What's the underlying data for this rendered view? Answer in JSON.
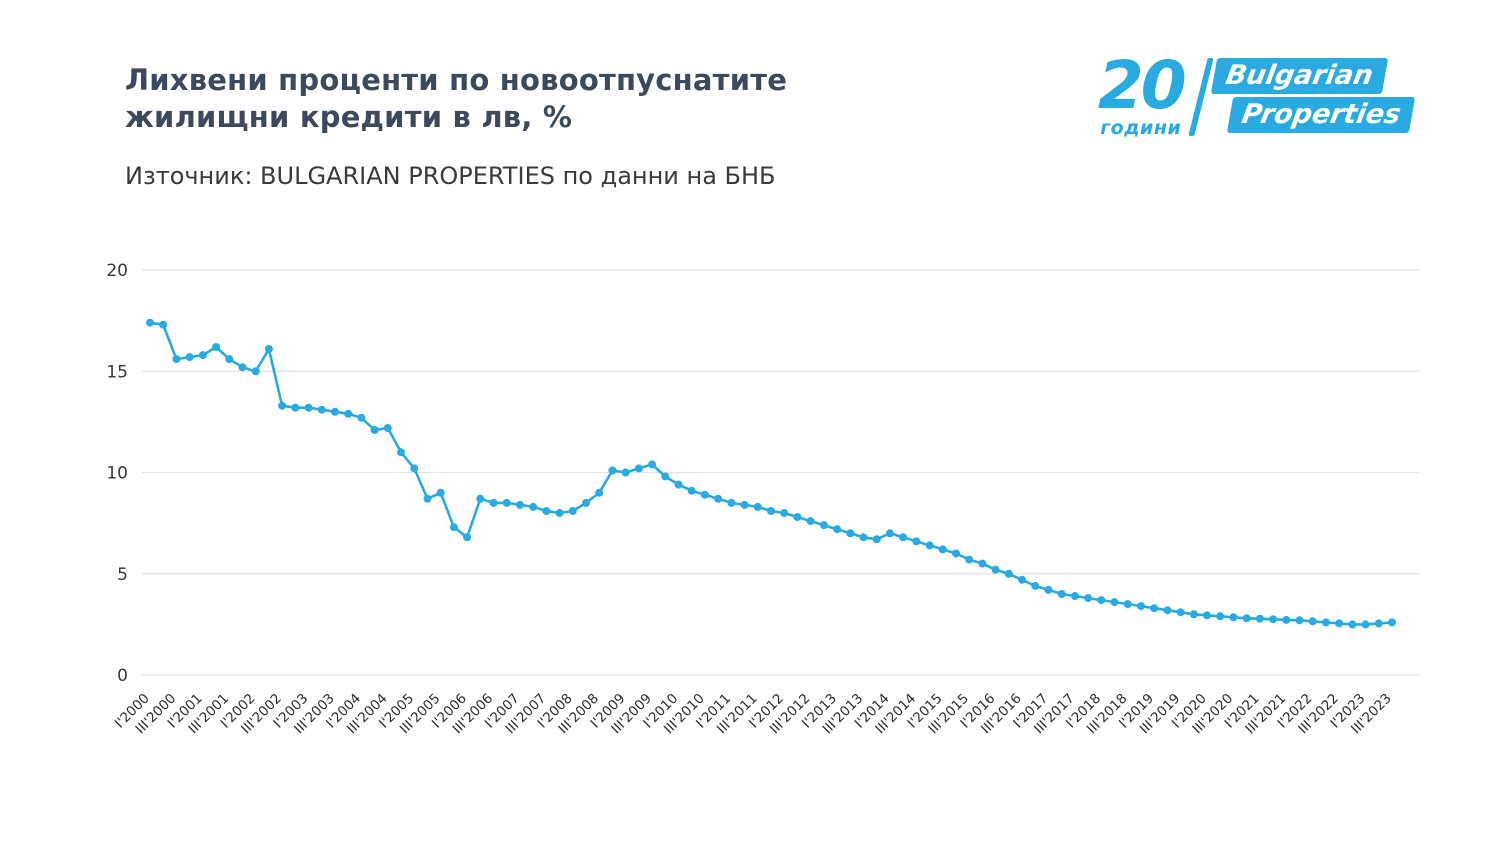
{
  "header": {
    "title_line1": "Лихвени проценти по новоотпуснатите",
    "title_line2": "жилищни кредити в лв, %",
    "subtitle": "Източник: BULGARIAN PROPERTIES по данни на БНБ"
  },
  "logo": {
    "number": "20",
    "years": "години",
    "brand_line1": "Bulgarian",
    "brand_line2": "Properties",
    "color": "#29ABE2"
  },
  "chart_data": {
    "type": "line",
    "title": "Лихвени проценти по новоотпуснатите жилищни кредити в лв, %",
    "source": "Източник: BULGARIAN PROPERTIES по данни на БНБ",
    "line_color": "#29ABE2",
    "marker": "circle",
    "grid": true,
    "legend": "none",
    "ylim": [
      0,
      20
    ],
    "yticks": [
      0,
      5,
      10,
      15,
      20
    ],
    "x_label_every_nth_point": 2,
    "x_labels": [
      "I'2000",
      "III'2000",
      "I'2001",
      "III'2001",
      "I'2002",
      "III'2002",
      "I'2003",
      "III'2003",
      "I'2004",
      "III'2004",
      "I'2005",
      "III'2005",
      "I'2006",
      "III'2006",
      "I'2007",
      "III'2007",
      "I'2008",
      "III'2008",
      "I'2009",
      "III'2009",
      "I'2010",
      "III'2010",
      "I'2011",
      "III'2011",
      "I'2012",
      "III'2012",
      "I'2013",
      "III'2013",
      "I'2014",
      "III'2014",
      "I'2015",
      "III'2015",
      "I'2016",
      "III'2016",
      "I'2017",
      "III'2017",
      "I'2018",
      "III'2018",
      "I'2019",
      "III'2019",
      "I'2020",
      "III'2020",
      "I'2021",
      "III'2021",
      "I'2022",
      "III'2022",
      "I'2023",
      "III'2023"
    ],
    "values": [
      17.4,
      17.3,
      15.6,
      15.7,
      15.8,
      16.2,
      15.6,
      15.2,
      15.0,
      16.1,
      13.3,
      13.2,
      13.2,
      13.1,
      13.0,
      12.9,
      12.7,
      12.1,
      12.2,
      11.0,
      10.2,
      8.7,
      9.0,
      7.3,
      6.8,
      8.7,
      8.5,
      8.5,
      8.4,
      8.3,
      8.1,
      8.0,
      8.1,
      8.5,
      9.0,
      10.1,
      10.0,
      10.2,
      10.4,
      9.8,
      9.4,
      9.1,
      8.9,
      8.7,
      8.5,
      8.4,
      8.3,
      8.1,
      8.0,
      7.8,
      7.6,
      7.4,
      7.2,
      7.0,
      6.8,
      6.7,
      7.0,
      6.8,
      6.6,
      6.4,
      6.2,
      6.0,
      5.7,
      5.5,
      5.2,
      5.0,
      4.7,
      4.4,
      4.2,
      4.0,
      3.9,
      3.8,
      3.7,
      3.6,
      3.5,
      3.4,
      3.3,
      3.2,
      3.1,
      3.0,
      2.95,
      2.9,
      2.85,
      2.8,
      2.78,
      2.75,
      2.72,
      2.7,
      2.65,
      2.6,
      2.55,
      2.5,
      2.5,
      2.55,
      2.6
    ]
  }
}
